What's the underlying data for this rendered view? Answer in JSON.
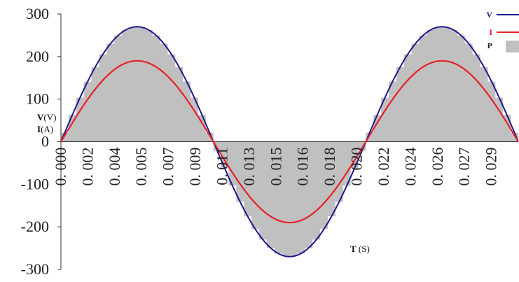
{
  "chart_data": {
    "type": "line",
    "title": "",
    "xlabel": "T (S)",
    "ylabel_lines": [
      "V(V)",
      "I(A)"
    ],
    "xlim": [
      0,
      0.03
    ],
    "ylim": [
      -300,
      300
    ],
    "yticks": [
      300,
      200,
      100,
      0,
      -100,
      -200,
      -300
    ],
    "yticklabels": [
      "300",
      "200",
      "100",
      "0",
      "-100",
      "-200",
      "-300"
    ],
    "xticklabels": [
      "0. 000",
      "0. 002",
      "0. 004",
      "0. 005",
      "0. 007",
      "0. 009",
      "0. 011",
      "0. 013",
      "0. 015",
      "0. 016",
      "0. 018",
      "0. 020",
      "0. 022",
      "0. 024",
      "0. 026",
      "0. 027",
      "0. 029"
    ],
    "x_sample_step": 0.0005,
    "frequency_hz": 50,
    "grid": false,
    "legend_position": "top-right",
    "series": [
      {
        "name": "V",
        "amplitude": 270,
        "color": "#1a1a8a",
        "style": "line"
      },
      {
        "name": "I",
        "amplitude": 190,
        "color": "#e8202a",
        "style": "line"
      },
      {
        "name": "P",
        "amplitude": 270,
        "color": "#c0c0c0",
        "style": "area"
      }
    ]
  }
}
